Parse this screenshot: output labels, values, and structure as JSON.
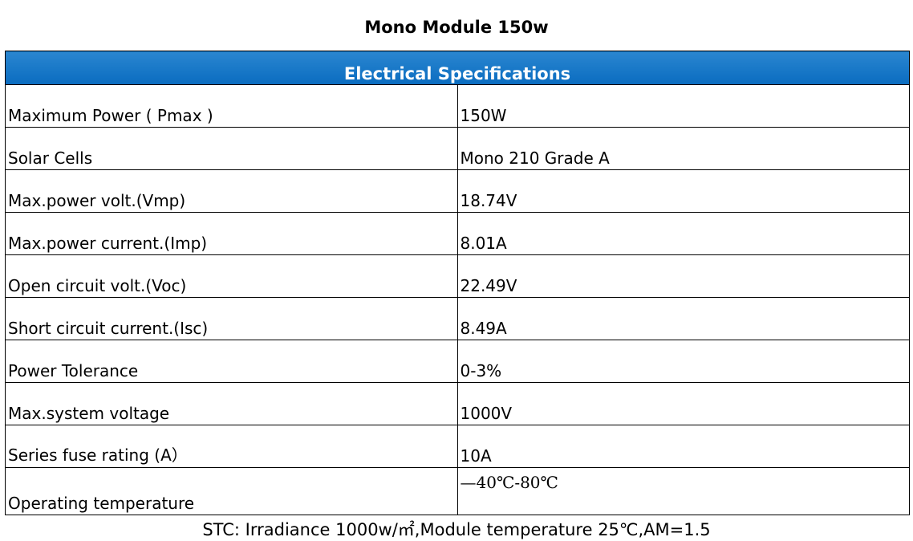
{
  "title": "Mono Module 150w",
  "table": {
    "header": "Electrical Specifications",
    "rows": [
      [
        "Maximum Power ( Pmax )",
        "150W"
      ],
      [
        "Solar Cells",
        "Mono 210 Grade A"
      ],
      [
        "Max.power volt.(Vmp)",
        "18.74V"
      ],
      [
        "Max.power current.(Imp)",
        "8.01A"
      ],
      [
        "Open circuit volt.(Voc)",
        "22.49V"
      ],
      [
        "Short circuit current.(Isc)",
        "8.49A"
      ],
      [
        "Power Tolerance",
        "0-3%"
      ],
      [
        "Max.system voltage",
        "1000V"
      ],
      [
        "Series fuse rating (A）",
        "10A"
      ],
      [
        "Operating temperature",
        "—40℃-80℃"
      ]
    ]
  },
  "footer": "STC: Irradiance 1000w/㎡,Module temperature 25℃,AM=1.5"
}
